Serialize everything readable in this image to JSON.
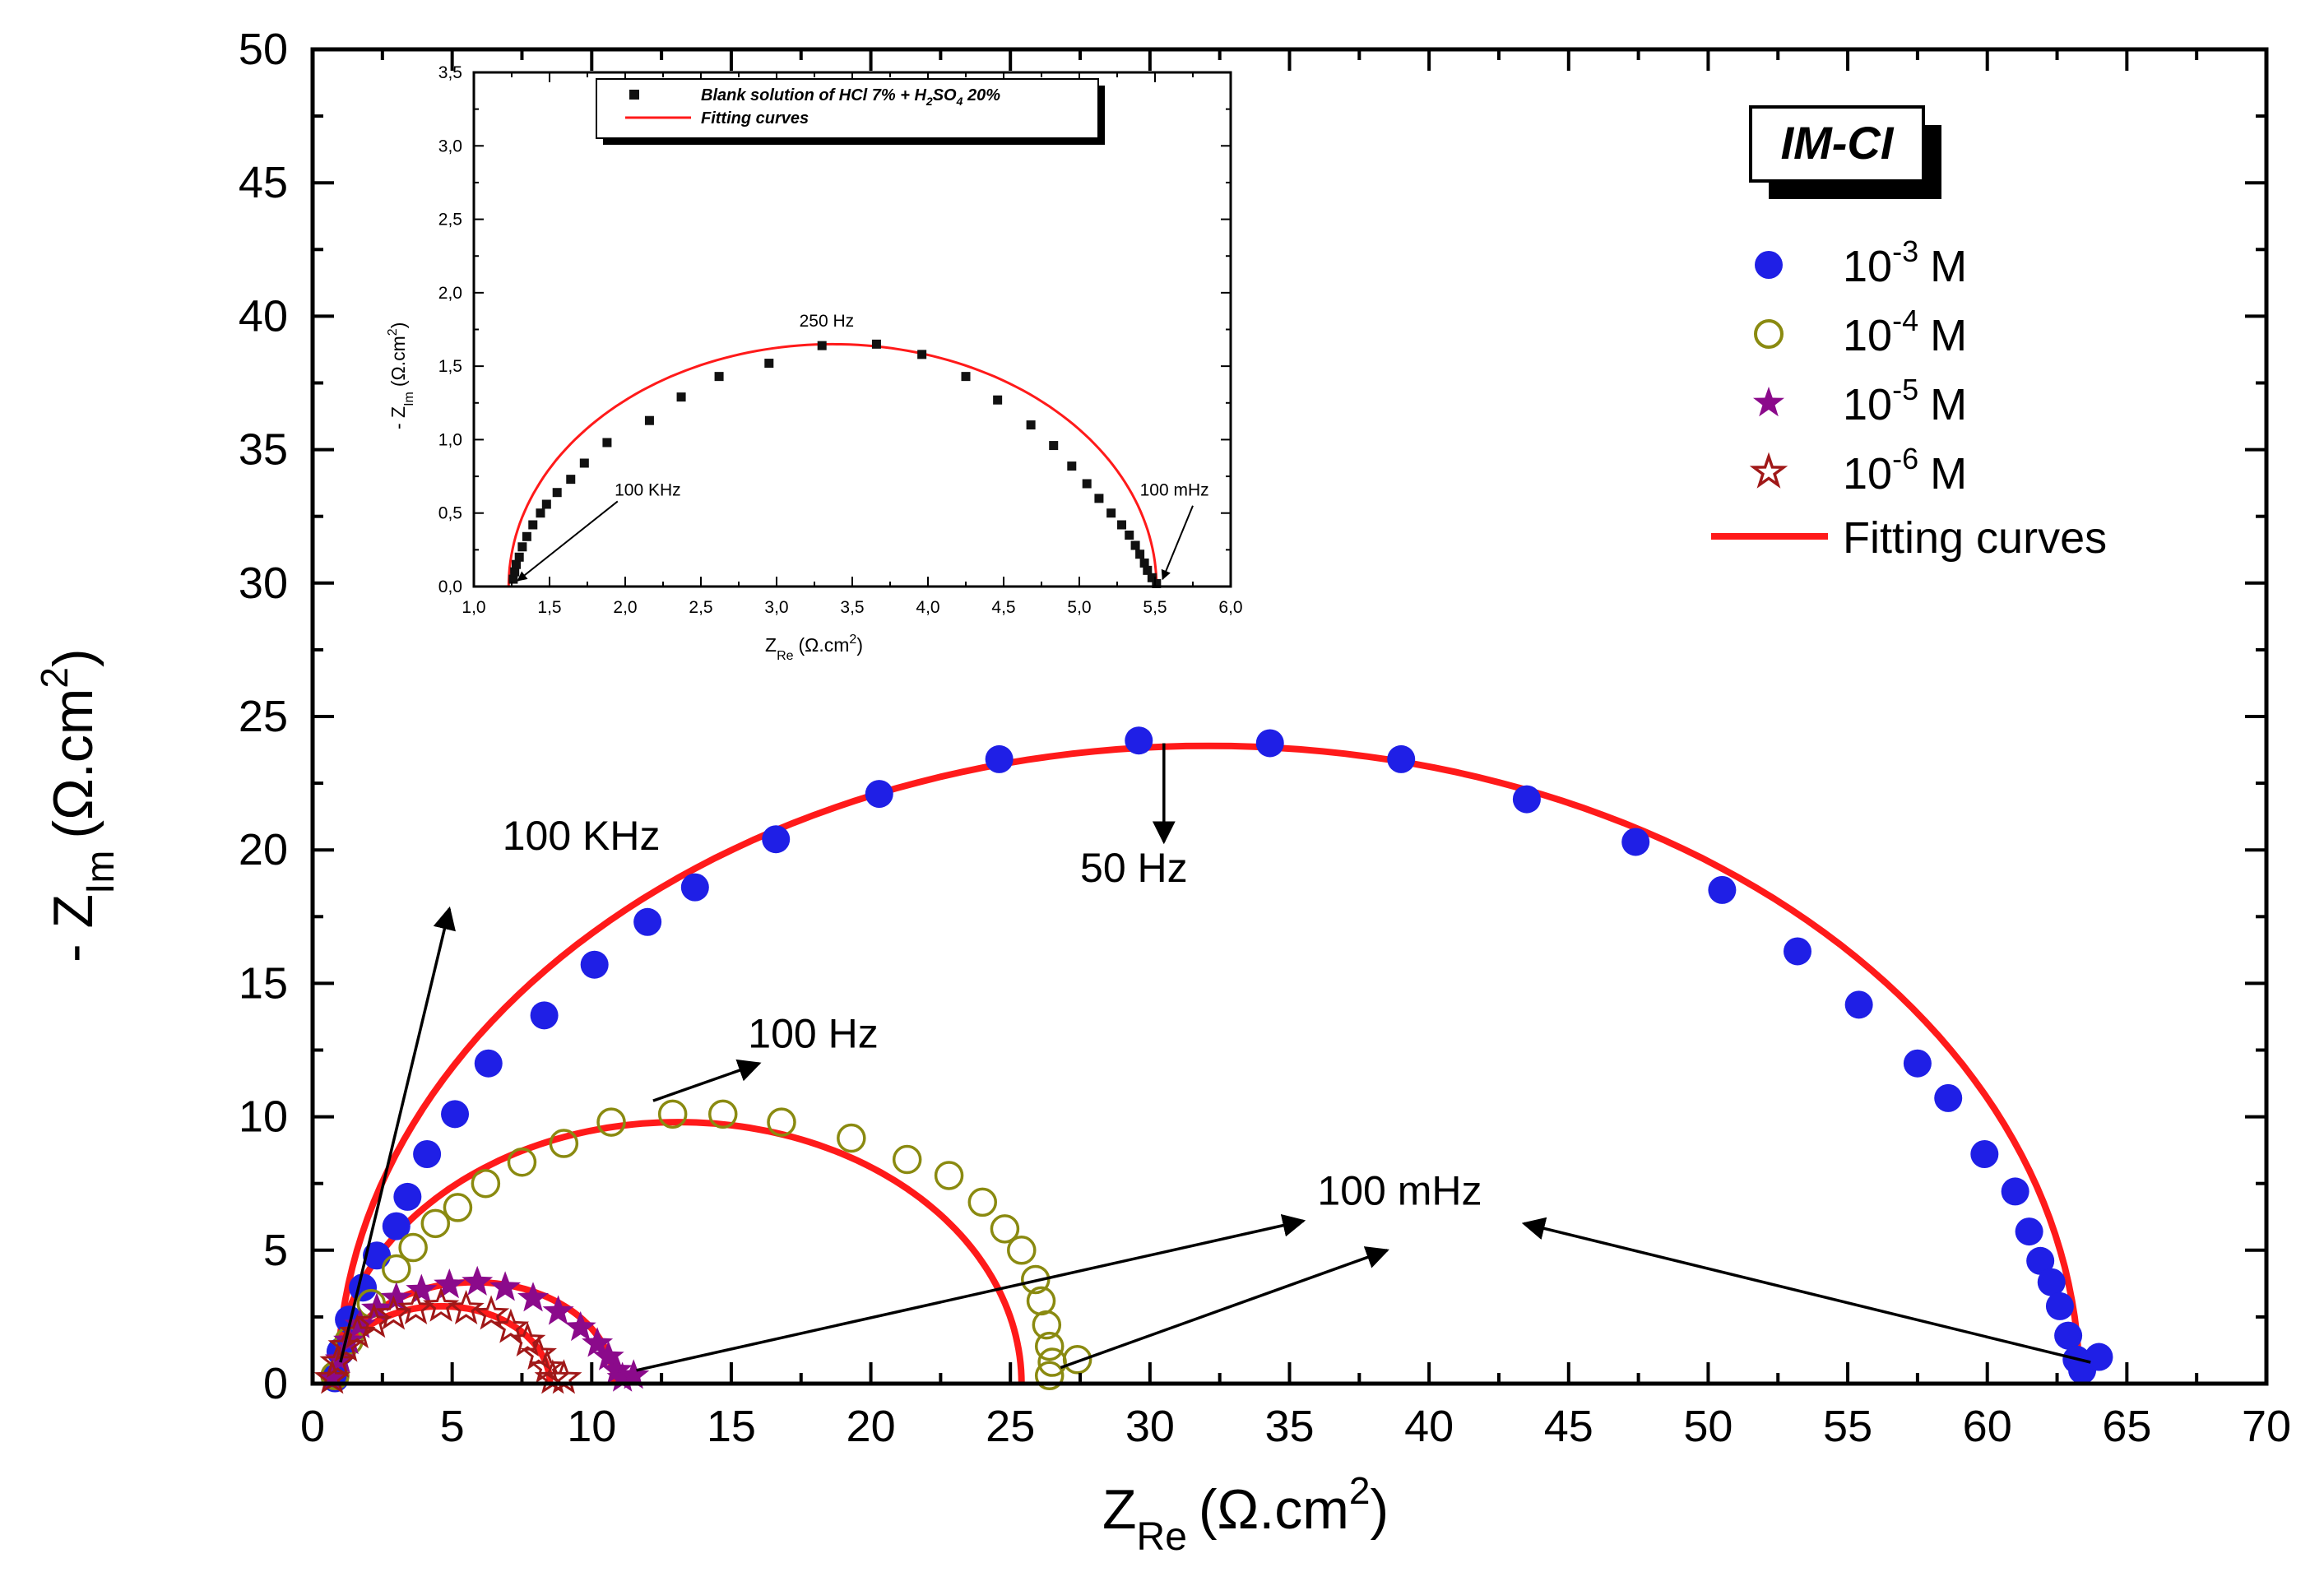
{
  "colors": {
    "fit": "#ff1a1a",
    "s1": "#1f1fe6",
    "s2": "#8a8a10",
    "s3": "#8b0a8b",
    "s4": "#a01818",
    "blank": "#111111"
  },
  "tag": "IM-CI",
  "chart_data": [
    {
      "type": "scatter",
      "xlabel": "Z",
      "xlabel_sub": "Re",
      "xlabel_unit": "(Ω.cm",
      "xlabel_sup": "2",
      "xlabel_end": ")",
      "ylabel": "- Z",
      "ylabel_sub": "Im",
      "ylabel_unit": "(Ω.cm",
      "ylabel_sup": "2",
      "ylabel_end": ")",
      "xlim": [
        0,
        70
      ],
      "ylim": [
        0,
        50
      ],
      "xticks": [
        0,
        5,
        10,
        15,
        20,
        25,
        30,
        35,
        40,
        45,
        50,
        55,
        60,
        65,
        70
      ],
      "yticks": [
        0,
        5,
        10,
        15,
        20,
        25,
        30,
        35,
        40,
        45,
        50
      ],
      "legend_position": "top-right",
      "legend": [
        {
          "base": "10",
          "sup": "-3",
          "unit": "M",
          "marker": "circle-filled",
          "color_key": "s1"
        },
        {
          "base": "10",
          "sup": "-4",
          "unit": "M",
          "marker": "circle-open",
          "color_key": "s2"
        },
        {
          "base": "10",
          "sup": "-5",
          "unit": "M",
          "marker": "star-filled",
          "color_key": "s3"
        },
        {
          "base": "10",
          "sup": "-6",
          "unit": "M",
          "marker": "star-open",
          "color_key": "s4"
        },
        {
          "label": "Fitting curves",
          "marker": "line",
          "color_key": "fit"
        }
      ],
      "series": [
        {
          "name": "10-3 M",
          "marker": "circle-filled",
          "color_key": "s1",
          "points": [
            [
              0.8,
              0.2
            ],
            [
              1.0,
              1.2
            ],
            [
              1.3,
              2.4
            ],
            [
              1.8,
              3.6
            ],
            [
              2.3,
              4.8
            ],
            [
              3.0,
              5.9
            ],
            [
              3.4,
              7.0
            ],
            [
              4.1,
              8.6
            ],
            [
              5.1,
              10.1
            ],
            [
              6.3,
              12.0
            ],
            [
              8.3,
              13.8
            ],
            [
              10.1,
              15.7
            ],
            [
              12.0,
              17.3
            ],
            [
              13.7,
              18.6
            ],
            [
              16.6,
              20.4
            ],
            [
              20.3,
              22.1
            ],
            [
              24.6,
              23.4
            ],
            [
              29.6,
              24.1
            ],
            [
              34.3,
              24.0
            ],
            [
              39.0,
              23.4
            ],
            [
              43.5,
              21.9
            ],
            [
              47.4,
              20.3
            ],
            [
              50.5,
              18.5
            ],
            [
              53.2,
              16.2
            ],
            [
              55.4,
              14.2
            ],
            [
              57.5,
              12.0
            ],
            [
              58.6,
              10.7
            ],
            [
              59.9,
              8.6
            ],
            [
              61.0,
              7.2
            ],
            [
              61.5,
              5.7
            ],
            [
              61.9,
              4.6
            ],
            [
              62.3,
              3.8
            ],
            [
              62.6,
              2.9
            ],
            [
              62.9,
              1.8
            ],
            [
              63.2,
              0.9
            ],
            [
              63.4,
              0.5
            ],
            [
              64.0,
              1.0
            ]
          ]
        },
        {
          "name": "10-4 M",
          "marker": "circle-open",
          "color_key": "s2",
          "points": [
            [
              0.8,
              0.3
            ],
            [
              1.3,
              1.6
            ],
            [
              2.1,
              3.0
            ],
            [
              3.0,
              4.3
            ],
            [
              3.6,
              5.1
            ],
            [
              4.4,
              6.0
            ],
            [
              5.2,
              6.6
            ],
            [
              6.2,
              7.5
            ],
            [
              7.5,
              8.3
            ],
            [
              9.0,
              9.0
            ],
            [
              10.7,
              9.8
            ],
            [
              12.9,
              10.1
            ],
            [
              14.7,
              10.1
            ],
            [
              16.8,
              9.8
            ],
            [
              19.3,
              9.2
            ],
            [
              21.3,
              8.4
            ],
            [
              22.8,
              7.8
            ],
            [
              24.0,
              6.8
            ],
            [
              24.8,
              5.8
            ],
            [
              25.4,
              5.0
            ],
            [
              25.9,
              3.9
            ],
            [
              26.1,
              3.1
            ],
            [
              26.3,
              2.2
            ],
            [
              26.4,
              1.4
            ],
            [
              26.5,
              0.8
            ],
            [
              26.4,
              0.3
            ],
            [
              27.4,
              0.9
            ]
          ]
        },
        {
          "name": "10-5 M",
          "marker": "star-filled",
          "color_key": "s3",
          "points": [
            [
              0.7,
              0.2
            ],
            [
              1.0,
              0.9
            ],
            [
              1.3,
              1.6
            ],
            [
              1.7,
              2.2
            ],
            [
              2.3,
              2.8
            ],
            [
              3.0,
              3.2
            ],
            [
              3.9,
              3.5
            ],
            [
              4.9,
              3.7
            ],
            [
              5.9,
              3.8
            ],
            [
              6.9,
              3.6
            ],
            [
              7.9,
              3.2
            ],
            [
              8.8,
              2.7
            ],
            [
              9.6,
              2.1
            ],
            [
              10.2,
              1.5
            ],
            [
              10.6,
              1.0
            ],
            [
              10.9,
              0.5
            ],
            [
              11.1,
              0.2
            ],
            [
              11.5,
              0.3
            ]
          ]
        },
        {
          "name": "10-6 M",
          "marker": "star-open",
          "color_key": "s4",
          "points": [
            [
              0.7,
              0.2
            ],
            [
              0.9,
              0.8
            ],
            [
              1.2,
              1.4
            ],
            [
              1.6,
              1.9
            ],
            [
              2.2,
              2.3
            ],
            [
              2.9,
              2.6
            ],
            [
              3.7,
              2.8
            ],
            [
              4.6,
              2.9
            ],
            [
              5.5,
              2.8
            ],
            [
              6.4,
              2.6
            ],
            [
              7.1,
              2.1
            ],
            [
              7.7,
              1.6
            ],
            [
              8.1,
              1.1
            ],
            [
              8.4,
              0.6
            ],
            [
              8.6,
              0.2
            ],
            [
              9.0,
              0.2
            ]
          ]
        }
      ],
      "fits": [
        {
          "center": [
            32.1,
            0.0
          ],
          "radius_x": 31.2,
          "radius_y": 23.9,
          "color_key": "fit"
        },
        {
          "center": [
            13.1,
            0.0
          ],
          "radius_x": 12.3,
          "radius_y": 9.8,
          "color_key": "fit"
        },
        {
          "center": [
            5.8,
            0.0
          ],
          "radius_x": 5.0,
          "radius_y": 3.8,
          "color_key": "fit"
        },
        {
          "center": [
            4.6,
            0.0
          ],
          "radius_x": 3.9,
          "radius_y": 2.9,
          "color_key": "fit"
        }
      ],
      "annotations": [
        {
          "text": "100 KHz",
          "at": [
            6.8,
            20.0
          ],
          "arrow_from": [
            1.0,
            0.8
          ],
          "arrow_to": [
            4.9,
            17.8
          ]
        },
        {
          "text": "100 Hz",
          "at": [
            15.6,
            12.6
          ],
          "arrow_from": [
            12.2,
            10.6
          ],
          "arrow_to": [
            16.0,
            12.0
          ]
        },
        {
          "text": "50 Hz",
          "at": [
            27.5,
            18.8
          ],
          "arrow_from": [
            30.5,
            24.0
          ],
          "arrow_to": [
            30.5,
            20.3
          ]
        },
        {
          "text": "100 mHz",
          "at": [
            36.0,
            6.7
          ],
          "arrow_from": [
            11.6,
            0.5
          ],
          "arrow_to": [
            35.5,
            6.1
          ]
        },
        {
          "text": "",
          "arrow_from": [
            26.8,
            0.6
          ],
          "arrow_to": [
            38.5,
            5.0
          ]
        },
        {
          "text": "",
          "arrow_from": [
            63.7,
            0.8
          ],
          "arrow_to": [
            43.4,
            6.0
          ]
        }
      ]
    },
    {
      "type": "scatter",
      "xlabel": "Z",
      "xlabel_sub": "Re",
      "xlabel_unit": "(Ω.cm",
      "xlabel_sup": "2",
      "xlabel_end": ")",
      "ylabel": "- Z",
      "ylabel_sub": "Im",
      "ylabel_unit": "(Ω.cm",
      "ylabel_sup": "2",
      "ylabel_end": ")",
      "xlim": [
        1.0,
        6.0
      ],
      "ylim": [
        0.0,
        3.5
      ],
      "xticks": [
        "1,0",
        "1,5",
        "2,0",
        "2,5",
        "3,0",
        "3,5",
        "4,0",
        "4,5",
        "5,0",
        "5,5",
        "6,0"
      ],
      "yticks": [
        "0,0",
        "0,5",
        "1,0",
        "1,5",
        "2,0",
        "2,5",
        "3,0",
        "3,5"
      ],
      "legend_position": "top-left",
      "legend": [
        {
          "label_a": "Blank solution of HCl 7% + H",
          "sub_a": "2",
          "label_b": "SO",
          "sub_b": "4",
          "label_c": " 20%",
          "marker": "square",
          "color_key": "blank"
        },
        {
          "label": "Fitting curves",
          "marker": "line",
          "color_key": "fit"
        }
      ],
      "series": [
        {
          "name": "Blank solution of HCl 7% + H2SO4 20%",
          "marker": "square",
          "color_key": "blank",
          "points": [
            [
              1.26,
              0.05
            ],
            [
              1.27,
              0.1
            ],
            [
              1.28,
              0.15
            ],
            [
              1.3,
              0.2
            ],
            [
              1.32,
              0.27
            ],
            [
              1.35,
              0.34
            ],
            [
              1.39,
              0.42
            ],
            [
              1.44,
              0.5
            ],
            [
              1.48,
              0.56
            ],
            [
              1.55,
              0.64
            ],
            [
              1.64,
              0.73
            ],
            [
              1.73,
              0.84
            ],
            [
              1.88,
              0.98
            ],
            [
              2.16,
              1.13
            ],
            [
              2.37,
              1.29
            ],
            [
              2.62,
              1.43
            ],
            [
              2.95,
              1.52
            ],
            [
              3.3,
              1.64
            ],
            [
              3.66,
              1.65
            ],
            [
              3.96,
              1.58
            ],
            [
              4.25,
              1.43
            ],
            [
              4.46,
              1.27
            ],
            [
              4.68,
              1.1
            ],
            [
              4.83,
              0.96
            ],
            [
              4.95,
              0.82
            ],
            [
              5.05,
              0.7
            ],
            [
              5.13,
              0.6
            ],
            [
              5.21,
              0.5
            ],
            [
              5.28,
              0.42
            ],
            [
              5.33,
              0.35
            ],
            [
              5.37,
              0.28
            ],
            [
              5.4,
              0.22
            ],
            [
              5.43,
              0.16
            ],
            [
              5.45,
              0.11
            ],
            [
              5.48,
              0.06
            ],
            [
              5.51,
              0.02
            ]
          ]
        }
      ],
      "fits": [
        {
          "center": [
            3.37,
            0.0
          ],
          "radius_x": 2.14,
          "radius_y": 1.65,
          "color_key": "fit"
        }
      ],
      "annotations": [
        {
          "text": "250 Hz",
          "at": [
            3.15,
            1.77
          ]
        },
        {
          "text": "100 KHz",
          "at": [
            1.93,
            0.62
          ],
          "arrow_from": [
            1.95,
            0.58
          ],
          "arrow_to": [
            1.29,
            0.04
          ]
        },
        {
          "text": "100 mHz",
          "at": [
            5.4,
            0.62
          ],
          "arrow_from": [
            5.75,
            0.55
          ],
          "arrow_to": [
            5.55,
            0.05
          ]
        }
      ]
    }
  ]
}
